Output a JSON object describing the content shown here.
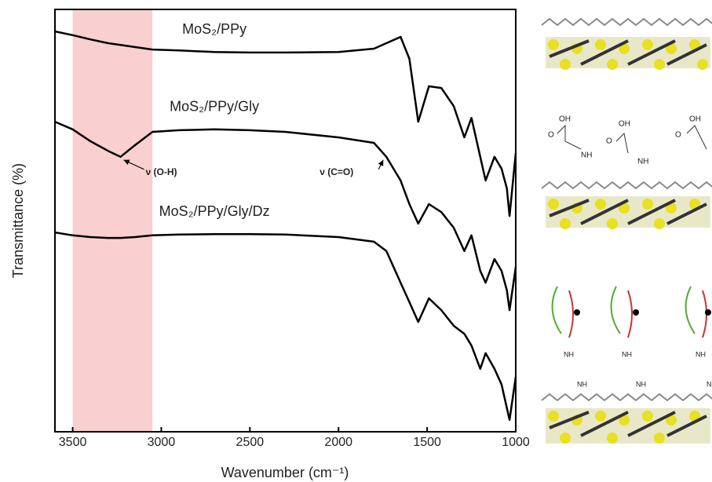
{
  "chart_data": {
    "type": "line",
    "x_label": "Wavenumber (cm⁻¹)",
    "y_label": "Transmittance (%)",
    "x": [
      3600,
      3500,
      3400,
      3300,
      3230,
      3150,
      3050,
      2900,
      2700,
      2500,
      2300,
      2000,
      1800,
      1730,
      1650,
      1600,
      1550,
      1490,
      1420,
      1350,
      1290,
      1250,
      1200,
      1170,
      1120,
      1080,
      1050,
      1035,
      1000
    ],
    "series": [
      {
        "name": "MoS₂/PPy",
        "color": "#000000",
        "values": [
          94.8,
          93.9,
          92.9,
          92.0,
          91.6,
          91.1,
          90.5,
          90.3,
          89.9,
          89.8,
          89.8,
          89.9,
          90.7,
          92.0,
          93.5,
          88.3,
          73.4,
          81.8,
          81.4,
          77.1,
          69.7,
          74.3,
          65.1,
          59.5,
          65.1,
          62.3,
          57.6,
          51.1,
          66.0
        ]
      },
      {
        "name": "MoS₂/PPy/Gly",
        "color": "#000000",
        "values": [
          73.4,
          71.6,
          68.8,
          66.5,
          65.1,
          67.8,
          71.0,
          71.4,
          71.6,
          71.4,
          71.0,
          69.7,
          68.4,
          65.1,
          59.5,
          53.9,
          49.3,
          53.9,
          52.0,
          48.3,
          42.8,
          46.5,
          38.1,
          35.3,
          40.9,
          38.1,
          33.5,
          28.8,
          39.0
        ]
      },
      {
        "name": "MoS₂/PPy/Gly/Dz",
        "color": "#000000",
        "values": [
          47.2,
          46.5,
          46.1,
          45.9,
          45.9,
          46.1,
          46.5,
          46.7,
          46.8,
          46.8,
          46.7,
          46.1,
          45.0,
          42.8,
          35.3,
          30.7,
          26.0,
          31.6,
          28.8,
          25.1,
          23.2,
          20.4,
          14.9,
          18.6,
          14.9,
          11.2,
          5.6,
          2.8,
          13.0
        ]
      }
    ],
    "xlim": [
      3600,
      1000
    ],
    "ylim": [
      0,
      100
    ],
    "xticks": [
      3500,
      3000,
      2500,
      2000,
      1500,
      1000
    ],
    "highlight_range": [
      3500,
      3050
    ],
    "highlight_color": "#f9cfcf",
    "annotations": [
      {
        "text": "ν (O-H)",
        "x": 3230,
        "series": 1
      },
      {
        "text": "ν (C=O)",
        "x": 1730,
        "series": 1
      }
    ]
  }
}
